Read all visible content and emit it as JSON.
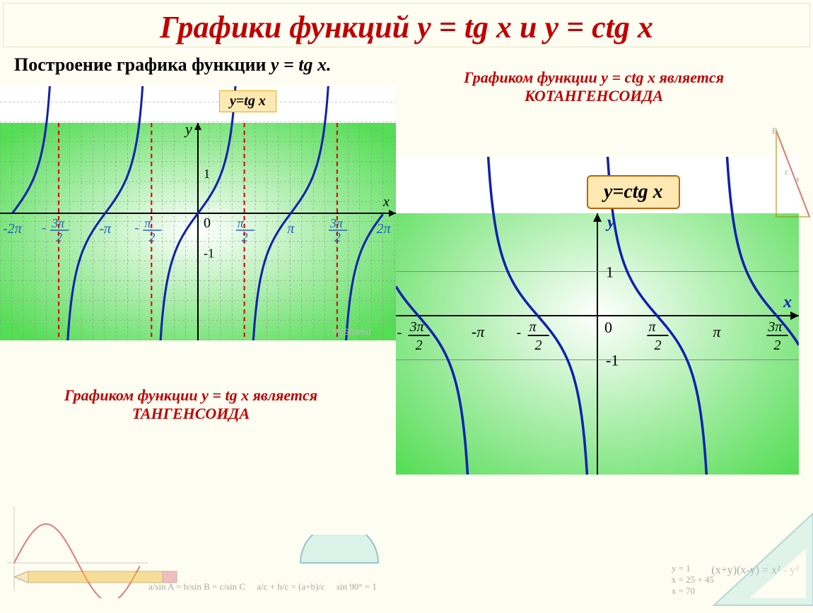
{
  "header": {
    "title": "Графики функций y = tg x  и  y = сtg x"
  },
  "tg": {
    "build_title_pre": "Построение графика функции ",
    "build_title_fn": "y = tg x.",
    "box_label": "y=tg x",
    "caption_pre": "Графиком функции y = tg x является",
    "caption_main": "ТАНГЕНСОИДА",
    "y_label": "y",
    "x_label": "x",
    "origin_label": "0",
    "y_ticks": [
      {
        "v": 1,
        "label": "1"
      },
      {
        "v": -1,
        "label": "-1"
      }
    ],
    "x_ticks": [
      {
        "v": -6.2832,
        "label": "-2π",
        "frac": false
      },
      {
        "v": -4.7124,
        "num": "3π",
        "den": "2",
        "frac": true,
        "neg": true
      },
      {
        "v": -3.1416,
        "label": "-π",
        "frac": false
      },
      {
        "v": -1.5708,
        "num": "π",
        "den": "2",
        "frac": true,
        "neg": true
      },
      {
        "v": 1.5708,
        "num": "π",
        "den": "2",
        "frac": true,
        "neg": false
      },
      {
        "v": 3.1416,
        "label": "π",
        "frac": false
      },
      {
        "v": 4.7124,
        "num": "3π",
        "den": "2",
        "frac": true,
        "neg": false
      },
      {
        "v": 6.2832,
        "label": "2π",
        "frac": false
      }
    ],
    "asymptotes": [
      -4.7124,
      -1.5708,
      1.5708,
      4.7124
    ],
    "xlim": [
      -6.7,
      6.7
    ],
    "ylim": [
      -3.2,
      3.2
    ],
    "curve_segments": [
      [
        -6.283,
        -4.85
      ],
      [
        -4.57,
        -1.71
      ],
      [
        -1.43,
        1.43
      ],
      [
        1.71,
        4.57
      ],
      [
        4.85,
        6.283
      ]
    ],
    "curve_color": "#1020b0",
    "asymptote_color": "#e00000",
    "tick_color": "#2060c0",
    "grid_color": "#909090",
    "minor_grid_step_x": 0.3927,
    "minor_grid_step_y": 0.5,
    "bg_gradient_inner": "#ffffff",
    "bg_gradient_outer": "#55dd55",
    "watermark": "MyShared"
  },
  "ctg": {
    "box_label": "y=ctg x",
    "caption_pre": "Графиком функции y = ctg x является",
    "caption_main": "КОТАНГЕНСОИДА",
    "y_label": "y",
    "x_label": "x",
    "origin_label": "0",
    "y_ticks": [
      {
        "v": 1,
        "label": "1"
      },
      {
        "v": -1,
        "label": "-1"
      }
    ],
    "x_ticks": [
      {
        "v": -4.7124,
        "num": "3π",
        "den": "2",
        "frac": true,
        "neg": true
      },
      {
        "v": -3.1416,
        "label": "-π",
        "frac": false
      },
      {
        "v": -1.5708,
        "num": "π",
        "den": "2",
        "frac": true,
        "neg": true
      },
      {
        "v": 1.5708,
        "num": "π",
        "den": "2",
        "frac": true,
        "neg": false
      },
      {
        "v": 3.1416,
        "label": "π",
        "frac": false
      },
      {
        "v": 4.7124,
        "num": "3π",
        "den": "2",
        "frac": true,
        "neg": false
      }
    ],
    "xlim": [
      -5.3,
      5.3
    ],
    "ylim": [
      -3.6,
      3.6
    ],
    "curve_segments": [
      [
        -5.3,
        -3.3
      ],
      [
        -3.0,
        -0.15
      ],
      [
        0.15,
        3.0
      ],
      [
        3.3,
        5.3
      ]
    ],
    "curve_color": "#1020b0",
    "axis_color": "#000000",
    "bg_gradient_inner": "#ffffff",
    "bg_gradient_outer": "#55dd55"
  },
  "decor": {
    "sin_mini": {
      "color": "#c00000",
      "xlim": [
        0,
        6.2832
      ]
    },
    "formulas": [
      "a/sin A = b/sin B = c/sin C",
      "a/c + b/c = (a+b)/c",
      "sin 90° = 1",
      "y = 1",
      "x = 25 + 45",
      "x = 70",
      "(x+y)(x-y) = x² - y²"
    ]
  }
}
